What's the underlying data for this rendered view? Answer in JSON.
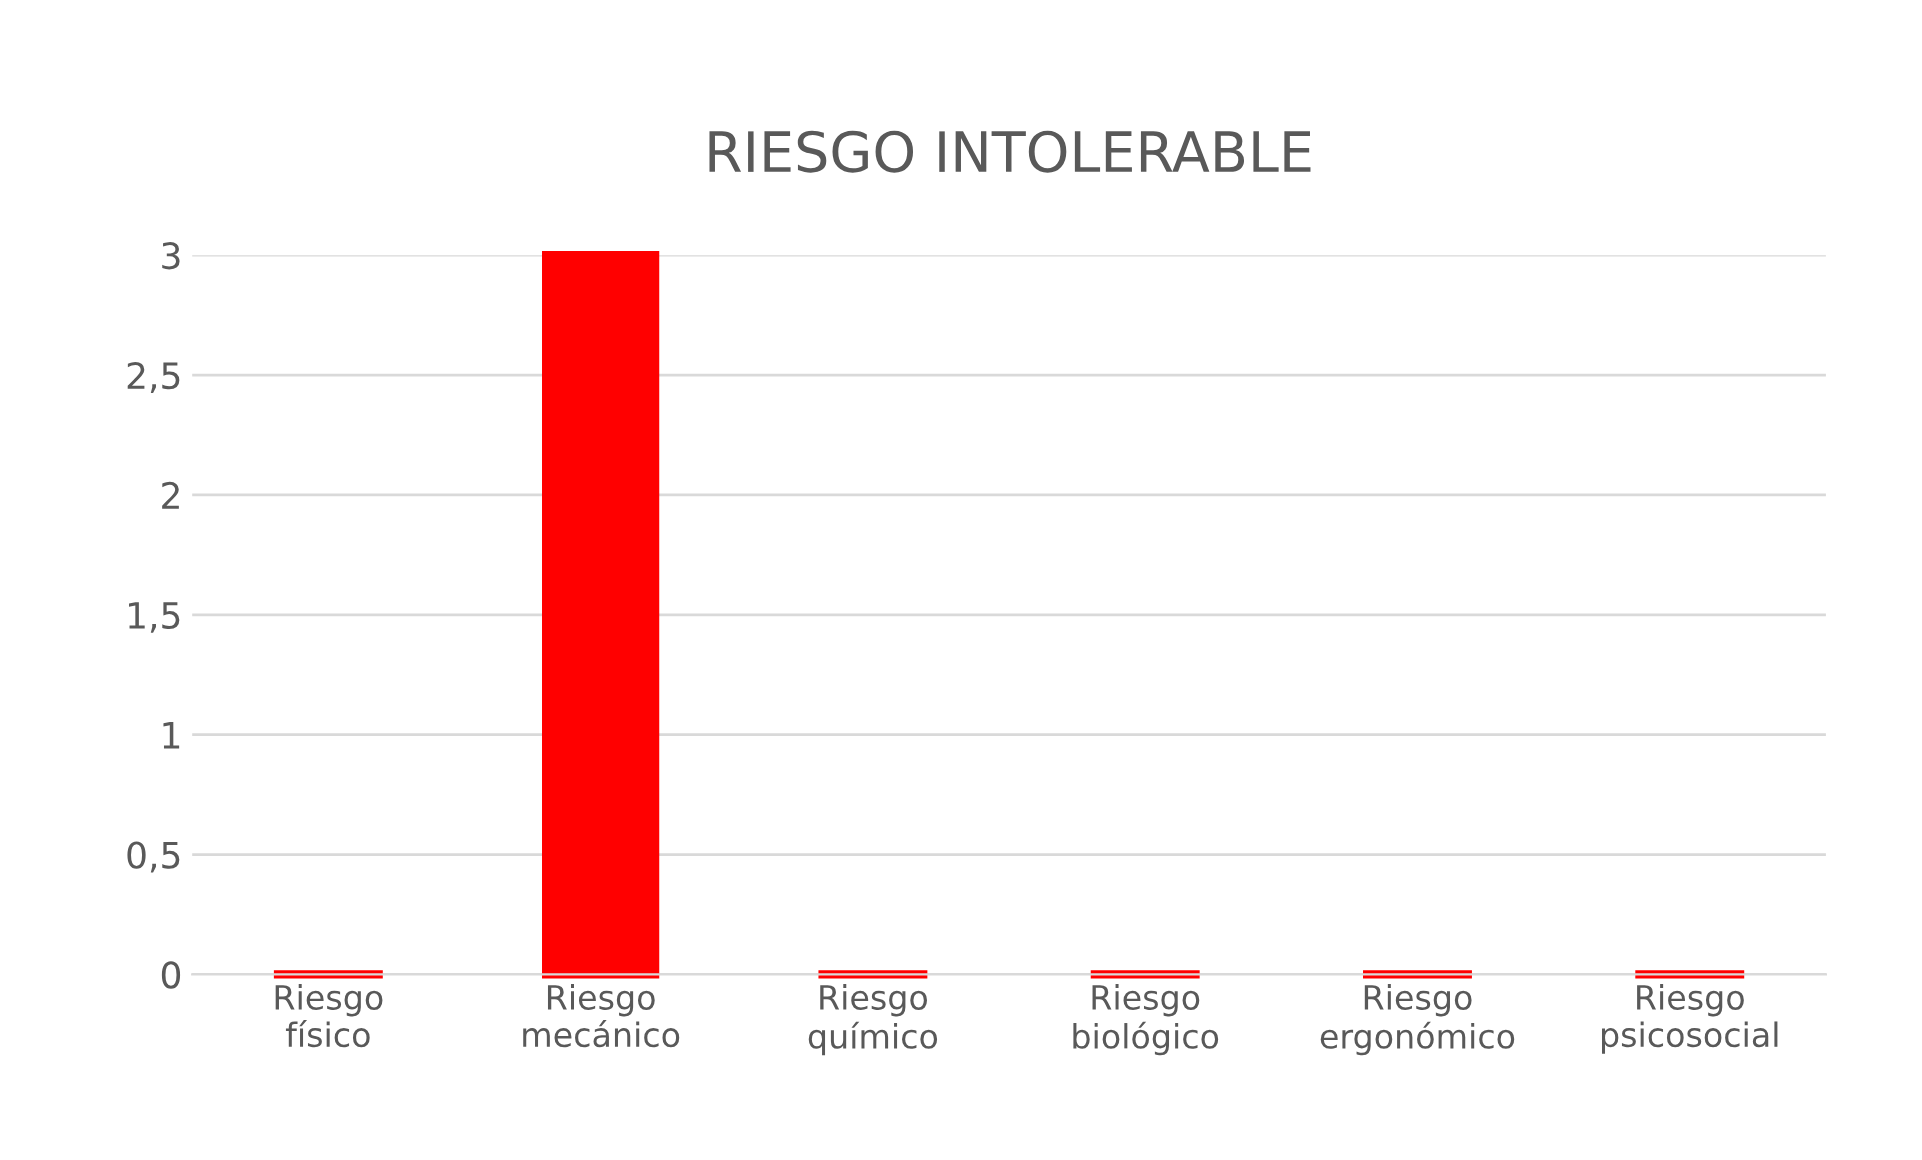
{
  "chart_data": {
    "type": "bar",
    "title": "RIESGO INTOLERABLE",
    "categories": [
      "Riesgo físico",
      "Riesgo mecánico",
      "Riesgo químico",
      "Riesgo biológico",
      "Riesgo ergonómico",
      "Riesgo psicosocial"
    ],
    "values": [
      0,
      3,
      0,
      0,
      0,
      0
    ],
    "color": "#ff0000",
    "ylim": [
      0,
      3
    ],
    "yticks": [
      0,
      {
        "value": 0.5,
        "label": "0,5"
      },
      1,
      {
        "value": 1.5,
        "label": "1,5"
      },
      2,
      {
        "value": 2.5,
        "label": "2,5"
      },
      3
    ],
    "grid": "y"
  }
}
